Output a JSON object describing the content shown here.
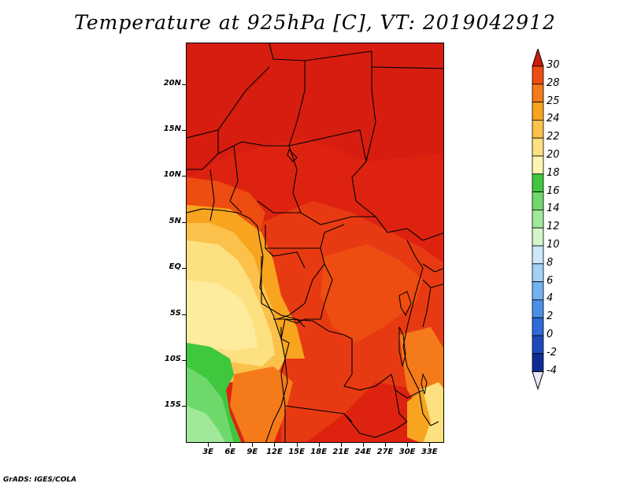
{
  "title": "Temperature at 925hPa [C], VT: 2019042912",
  "credit": "GrADS: IGES/COLA",
  "chart_data": {
    "type": "heatmap",
    "variable": "Temperature at 925hPa",
    "units": "C",
    "valid_time": "2019042912",
    "lon_range": [
      0,
      35
    ],
    "lat_range": [
      -19,
      24.5
    ],
    "y_tick_labels": [
      "20N",
      "15N",
      "10N",
      "5N",
      "EQ",
      "5S",
      "10S",
      "15S"
    ],
    "y_tick_values": [
      20,
      15,
      10,
      5,
      0,
      -5,
      -10,
      -15
    ],
    "x_tick_labels": [
      "3E",
      "6E",
      "9E",
      "12E",
      "15E",
      "18E",
      "21E",
      "24E",
      "27E",
      "30E",
      "33E"
    ],
    "x_tick_values": [
      3,
      6,
      9,
      12,
      15,
      18,
      21,
      24,
      27,
      30,
      33
    ],
    "colorbar": {
      "levels": [
        "30",
        "28",
        "25",
        "24",
        "22",
        "20",
        "18",
        "16",
        "14",
        "12",
        "10",
        "8",
        "6",
        "4",
        "2",
        "0",
        "-2",
        "-4"
      ],
      "colors": [
        "#dd2310",
        "#ed4d10",
        "#f57a1a",
        "#f8a41f",
        "#fbc14a",
        "#fde080",
        "#fef4b0",
        "#3fc73e",
        "#6fd86b",
        "#a1e89a",
        "#d2f5cb",
        "#cce8fa",
        "#a3d1f5",
        "#72b2ee",
        "#4b8fe6",
        "#2f6ad8",
        "#1d49bb",
        "#0e2c95",
        "#0a1866"
      ],
      "top_color": "#cf1a0e",
      "bottom_color": "#e8e8f8"
    }
  }
}
